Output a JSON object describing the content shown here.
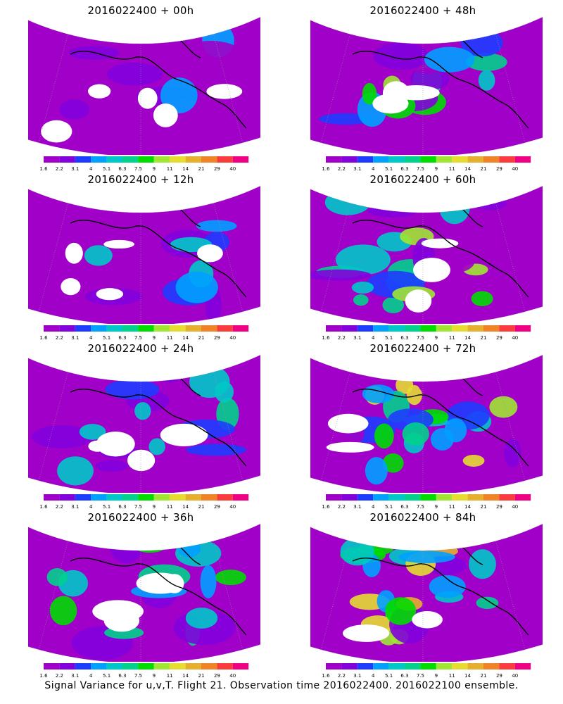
{
  "panels": [
    {
      "title": "2016022400 + 00h",
      "intensity": 0.18
    },
    {
      "title": "2016022400 + 48h",
      "intensity": 0.55
    },
    {
      "title": "2016022400 + 12h",
      "intensity": 0.3
    },
    {
      "title": "2016022400 + 60h",
      "intensity": 0.62
    },
    {
      "title": "2016022400 + 24h",
      "intensity": 0.38
    },
    {
      "title": "2016022400 + 72h",
      "intensity": 0.72
    },
    {
      "title": "2016022400 + 36h",
      "intensity": 0.45
    },
    {
      "title": "2016022400 + 84h",
      "intensity": 0.82
    }
  ],
  "colorbar": {
    "labels": [
      "1.6",
      "2.2",
      "3.1",
      "4",
      "5.1",
      "6.3",
      "7.5",
      "9",
      "11",
      "14",
      "21",
      "29",
      "40"
    ],
    "colors": [
      "#a000c8",
      "#8200dc",
      "#1e3cff",
      "#00a0ff",
      "#00c8c8",
      "#00d28c",
      "#00dc00",
      "#a0e632",
      "#e6dc32",
      "#e6af2d",
      "#f08228",
      "#fa3c3c",
      "#f00082"
    ]
  },
  "footer": "Signal Variance for u,v,T. Flight 21. Observation time 2016022400. 2016022100 ensemble."
}
